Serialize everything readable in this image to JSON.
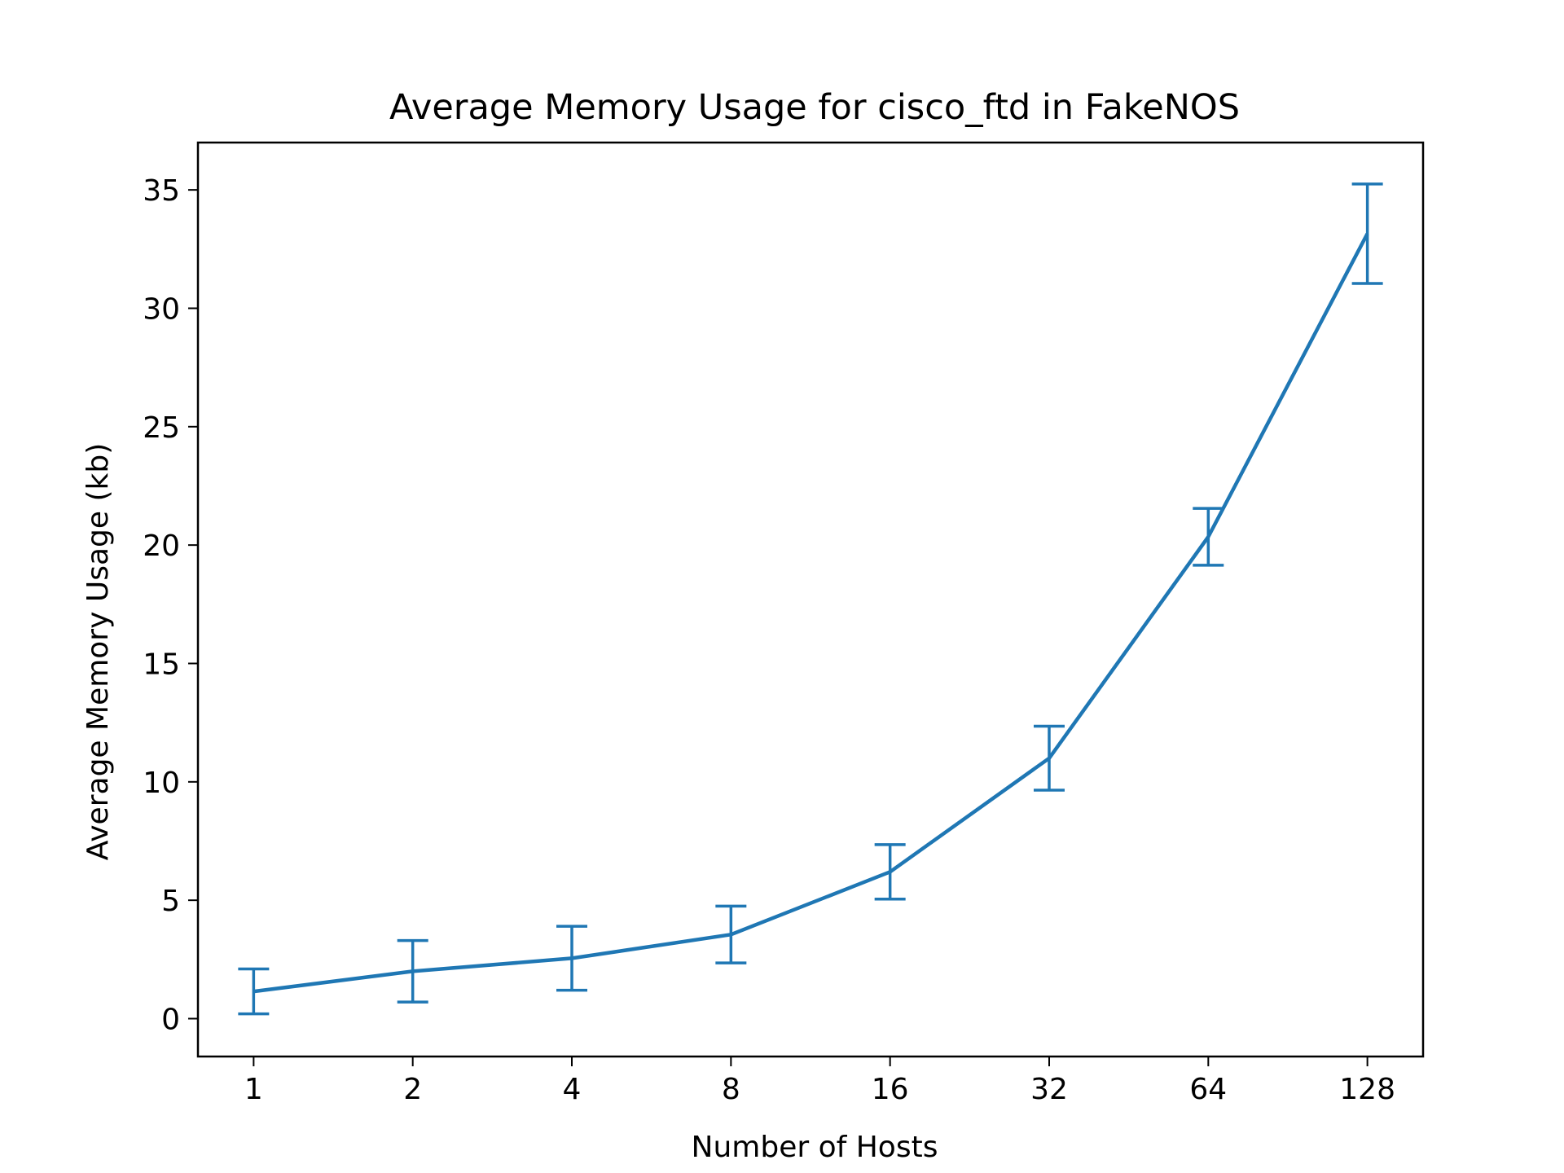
{
  "chart_data": {
    "type": "line",
    "title": "Average Memory Usage for cisco_ftd in FakeNOS",
    "xlabel": "Number of Hosts",
    "ylabel": "Average Memory Usage (kb)",
    "x_scale": "log2",
    "x": [
      1,
      2,
      4,
      8,
      16,
      32,
      64,
      128
    ],
    "x_tick_labels": [
      "1",
      "2",
      "4",
      "8",
      "16",
      "32",
      "64",
      "128"
    ],
    "y_ticks": [
      0,
      5,
      10,
      15,
      20,
      25,
      30,
      35
    ],
    "y_tick_labels": [
      "0",
      "5",
      "10",
      "15",
      "20",
      "25",
      "30",
      "35"
    ],
    "ylim": [
      -1.6,
      37
    ],
    "grid": false,
    "legend": "none",
    "series": [
      {
        "values": [
          1.15,
          2.0,
          2.55,
          3.55,
          6.2,
          11.0,
          20.35,
          33.15
        ],
        "error": [
          0.95,
          1.3,
          1.35,
          1.2,
          1.15,
          1.35,
          1.2,
          2.1
        ],
        "color": "#1f77b4"
      }
    ]
  }
}
